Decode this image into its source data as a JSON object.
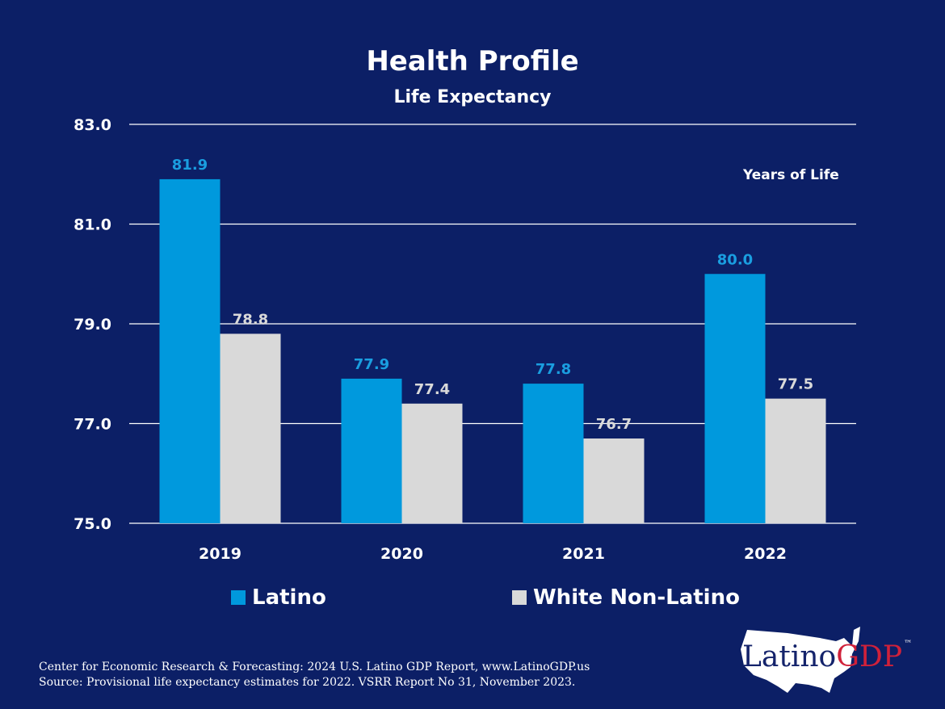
{
  "chart_data": {
    "type": "bar",
    "title": "Health Profile",
    "subtitle": "Life Expectancy",
    "ylabel": "Years of Life",
    "categories": [
      "2019",
      "2020",
      "2021",
      "2022"
    ],
    "series": [
      {
        "name": "Latino",
        "values": [
          81.9,
          77.9,
          77.8,
          80.0
        ],
        "color": "#0099dd",
        "label_color": "#1a9ee0"
      },
      {
        "name": "White Non-Latino",
        "values": [
          78.8,
          77.4,
          76.7,
          77.5
        ],
        "color": "#d9d9d9",
        "label_color": "#d9d9d9"
      }
    ],
    "ylim": [
      75,
      83
    ],
    "yticks": [
      "75.0",
      "77.0",
      "79.0",
      "81.0",
      "83.0"
    ],
    "grid": true,
    "legend": "bottom"
  },
  "footer": {
    "line1": "Center for Economic Research & Forecasting: 2024 U.S. Latino GDP Report, www.LatinoGDP.us",
    "line2": "Source: Provisional life expectancy estimates for 2022. VSRR Report No 31, November 2023."
  },
  "logo": {
    "text1": "Latino",
    "text2": "GDP",
    "tm": "™"
  },
  "colors": {
    "background": "#0c1f66"
  }
}
